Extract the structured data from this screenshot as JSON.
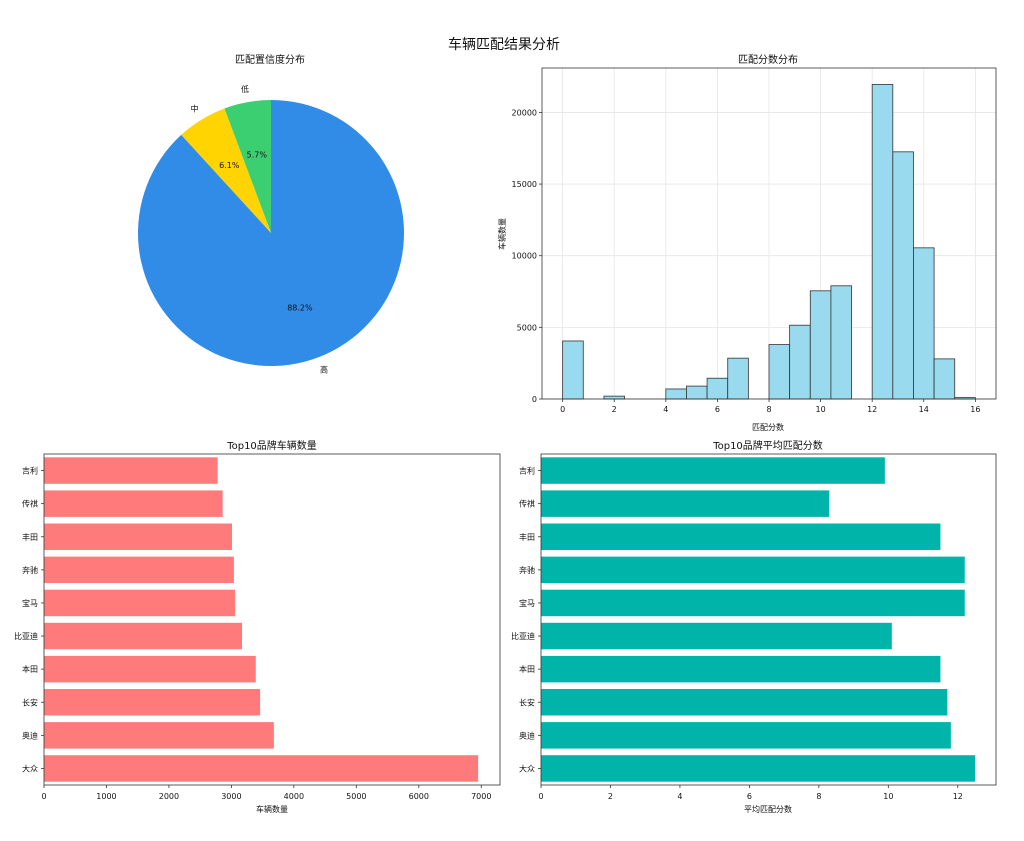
{
  "suptitle": "车辆匹配结果分析",
  "chart_data": [
    {
      "type": "pie",
      "title": "匹配置信度分布",
      "labels": [
        "低",
        "中",
        "高"
      ],
      "values": [
        5.7,
        6.1,
        88.2
      ],
      "value_labels": [
        "5.7%",
        "6.1%",
        "88.2%"
      ],
      "colors": [
        "#3ccf72",
        "#ffd400",
        "#318ce7"
      ]
    },
    {
      "type": "bar",
      "title": "匹配分数分布",
      "xlabel": "匹配分数",
      "ylabel": "车辆数量",
      "bar_color": "#99daee",
      "bin_width": 0.8,
      "bins_start": [
        0,
        0.8,
        1.6,
        2.4,
        3.2,
        4.0,
        4.8,
        5.6,
        6.4,
        7.2,
        8.0,
        8.8,
        9.6,
        10.4,
        11.2,
        12.0,
        12.8,
        13.6,
        14.4,
        15.2
      ],
      "values": [
        4050,
        0,
        200,
        0,
        0,
        700,
        900,
        1450,
        2850,
        0,
        3800,
        5150,
        7550,
        7900,
        0,
        21950,
        17250,
        10550,
        2800,
        100
      ],
      "xlim": [
        -0.8,
        16.8
      ],
      "ylim": [
        0,
        23100
      ],
      "xticks": [
        0,
        2,
        4,
        6,
        8,
        10,
        12,
        14,
        16
      ],
      "yticks": [
        0,
        5000,
        10000,
        15000,
        20000
      ],
      "grid": true
    },
    {
      "type": "bar",
      "orientation": "horizontal",
      "title": "Top10品牌车辆数量",
      "xlabel": "车辆数量",
      "bar_color": "#ff7b7b",
      "categories": [
        "大众",
        "奥迪",
        "长安",
        "本田",
        "比亚迪",
        "宝马",
        "奔驰",
        "丰田",
        "传祺",
        "吉利"
      ],
      "values": [
        6950,
        3680,
        3460,
        3390,
        3170,
        3060,
        3040,
        3010,
        2860,
        2780
      ],
      "xlim": [
        0,
        7300
      ],
      "xticks": [
        0,
        1000,
        2000,
        3000,
        4000,
        5000,
        6000,
        7000
      ]
    },
    {
      "type": "bar",
      "orientation": "horizontal",
      "title": "Top10品牌平均匹配分数",
      "xlabel": "平均匹配分数",
      "bar_color": "#00b4aa",
      "categories": [
        "大众",
        "奥迪",
        "长安",
        "本田",
        "比亚迪",
        "宝马",
        "奔驰",
        "丰田",
        "传祺",
        "吉利"
      ],
      "values": [
        12.5,
        11.8,
        11.7,
        11.5,
        10.1,
        12.2,
        12.2,
        11.5,
        8.3,
        9.9
      ],
      "xlim": [
        0,
        13.1
      ],
      "xticks": [
        0,
        2,
        4,
        6,
        8,
        10,
        12
      ]
    }
  ]
}
